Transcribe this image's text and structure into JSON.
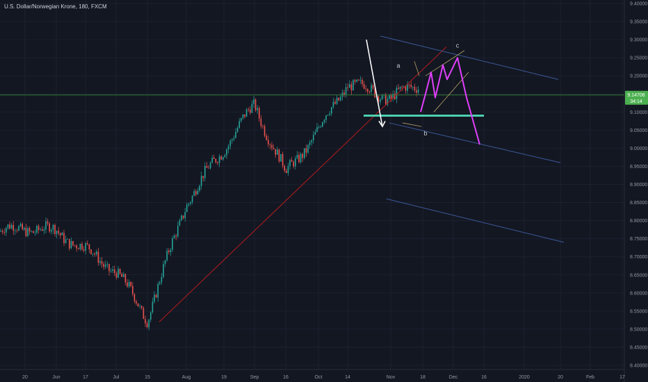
{
  "window": {
    "title": "U.S. Dollar/Norwegian Krone, 180, FXCM"
  },
  "price_tag": {
    "value": "9.14706",
    "countdown": "34:14"
  },
  "colors": {
    "background": "#131722",
    "up": "#26a69a",
    "down": "#ef5350",
    "hline": "#2e7d32",
    "trend": "#b71c1c",
    "channel": "#3c5a9a",
    "projection": "#e040fb",
    "support": "#4dd0b1",
    "arrow": "#ffffff",
    "minor_channel": "#b8a36a",
    "price_label": "#4caf50"
  },
  "chart_data": {
    "type": "candlestick",
    "x_ticks": [
      "20",
      "Jun",
      "17",
      "Jul",
      "15",
      "Aug",
      "19",
      "Sep",
      "16",
      "Oct",
      "14",
      "Nov",
      "18",
      "Dec",
      "16",
      "2020",
      "20",
      "Feb",
      "17"
    ],
    "y_ticks": [
      "9.40000",
      "9.35000",
      "9.30000",
      "9.25000",
      "9.20000",
      "9.15000",
      "9.10000",
      "9.05000",
      "9.00000",
      "8.95000",
      "8.90000",
      "8.85000",
      "8.80000",
      "8.75000",
      "8.70000",
      "8.65000",
      "8.60000",
      "8.55000",
      "8.50000",
      "8.45000",
      "8.40000"
    ],
    "ylim": [
      8.4,
      9.4
    ],
    "price_path": [
      [
        "20",
        8.78
      ],
      [
        "Jun",
        8.77
      ],
      [
        "17",
        8.72
      ],
      [
        "Jul",
        8.66
      ],
      [
        "15",
        8.53
      ],
      [
        "Aug",
        8.85
      ],
      [
        "19",
        9.0
      ],
      [
        "Sep",
        9.12
      ],
      [
        "16",
        8.93
      ],
      [
        "Oct",
        9.05
      ],
      [
        "14",
        9.18
      ],
      [
        "Nov",
        9.14
      ],
      [
        "18",
        9.18
      ]
    ],
    "current_price": 9.14706,
    "wave_labels": [
      "a",
      "b",
      "c"
    ]
  }
}
